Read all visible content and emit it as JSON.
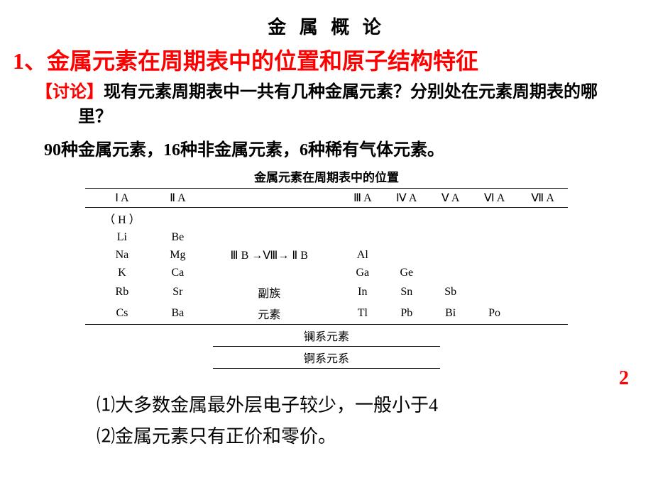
{
  "colors": {
    "accent": "#ff0000",
    "text": "#000000",
    "background": "#ffffff",
    "rule": "#000000"
  },
  "typography": {
    "title_fontsize": 26,
    "heading_fontsize": 32,
    "body_fontsize": 24,
    "point_fontsize": 26,
    "table_fontsize": 16,
    "font_family_zh": "SimSun"
  },
  "title": "金 属 概 论",
  "heading": "1、金属元素在周期表中的位置和原子结构特征",
  "discussion": {
    "label": "【讨论】",
    "text": "现有元素周期表中一共有几种金属元素？分别处在元素周期表的哪里？"
  },
  "answer": "90种金属元素，16种非金属元素，6种稀有气体元素。",
  "table": {
    "caption": "金属元素在周期表中的位置",
    "header": [
      "Ⅰ A",
      "Ⅱ A",
      "",
      "Ⅲ A",
      "Ⅳ A",
      "Ⅴ A",
      "Ⅵ A",
      "Ⅶ A"
    ],
    "rows": [
      [
        "（ H ）",
        "",
        "",
        "",
        "",
        "",
        "",
        ""
      ],
      [
        "Li",
        "Be",
        "",
        "",
        "",
        "",
        "",
        ""
      ],
      [
        "Na",
        "Mg",
        "Ⅲ B →Ⅷ→ Ⅱ B",
        "Al",
        "",
        "",
        "",
        ""
      ],
      [
        "K",
        "Ca",
        "",
        "Ga",
        "Ge",
        "",
        "",
        ""
      ],
      [
        "Rb",
        "Sr",
        "副族",
        "In",
        "Sn",
        "Sb",
        "",
        ""
      ],
      [
        "Cs",
        "Ba",
        "元素",
        "Tl",
        "Pb",
        "Bi",
        "Po",
        ""
      ]
    ],
    "footer_rows": [
      "镧系元素",
      "锕系元系"
    ]
  },
  "page_number": "2",
  "points": [
    "⑴大多数金属最外层电子较少，一般小于4",
    "⑵金属元素只有正价和零价。"
  ]
}
